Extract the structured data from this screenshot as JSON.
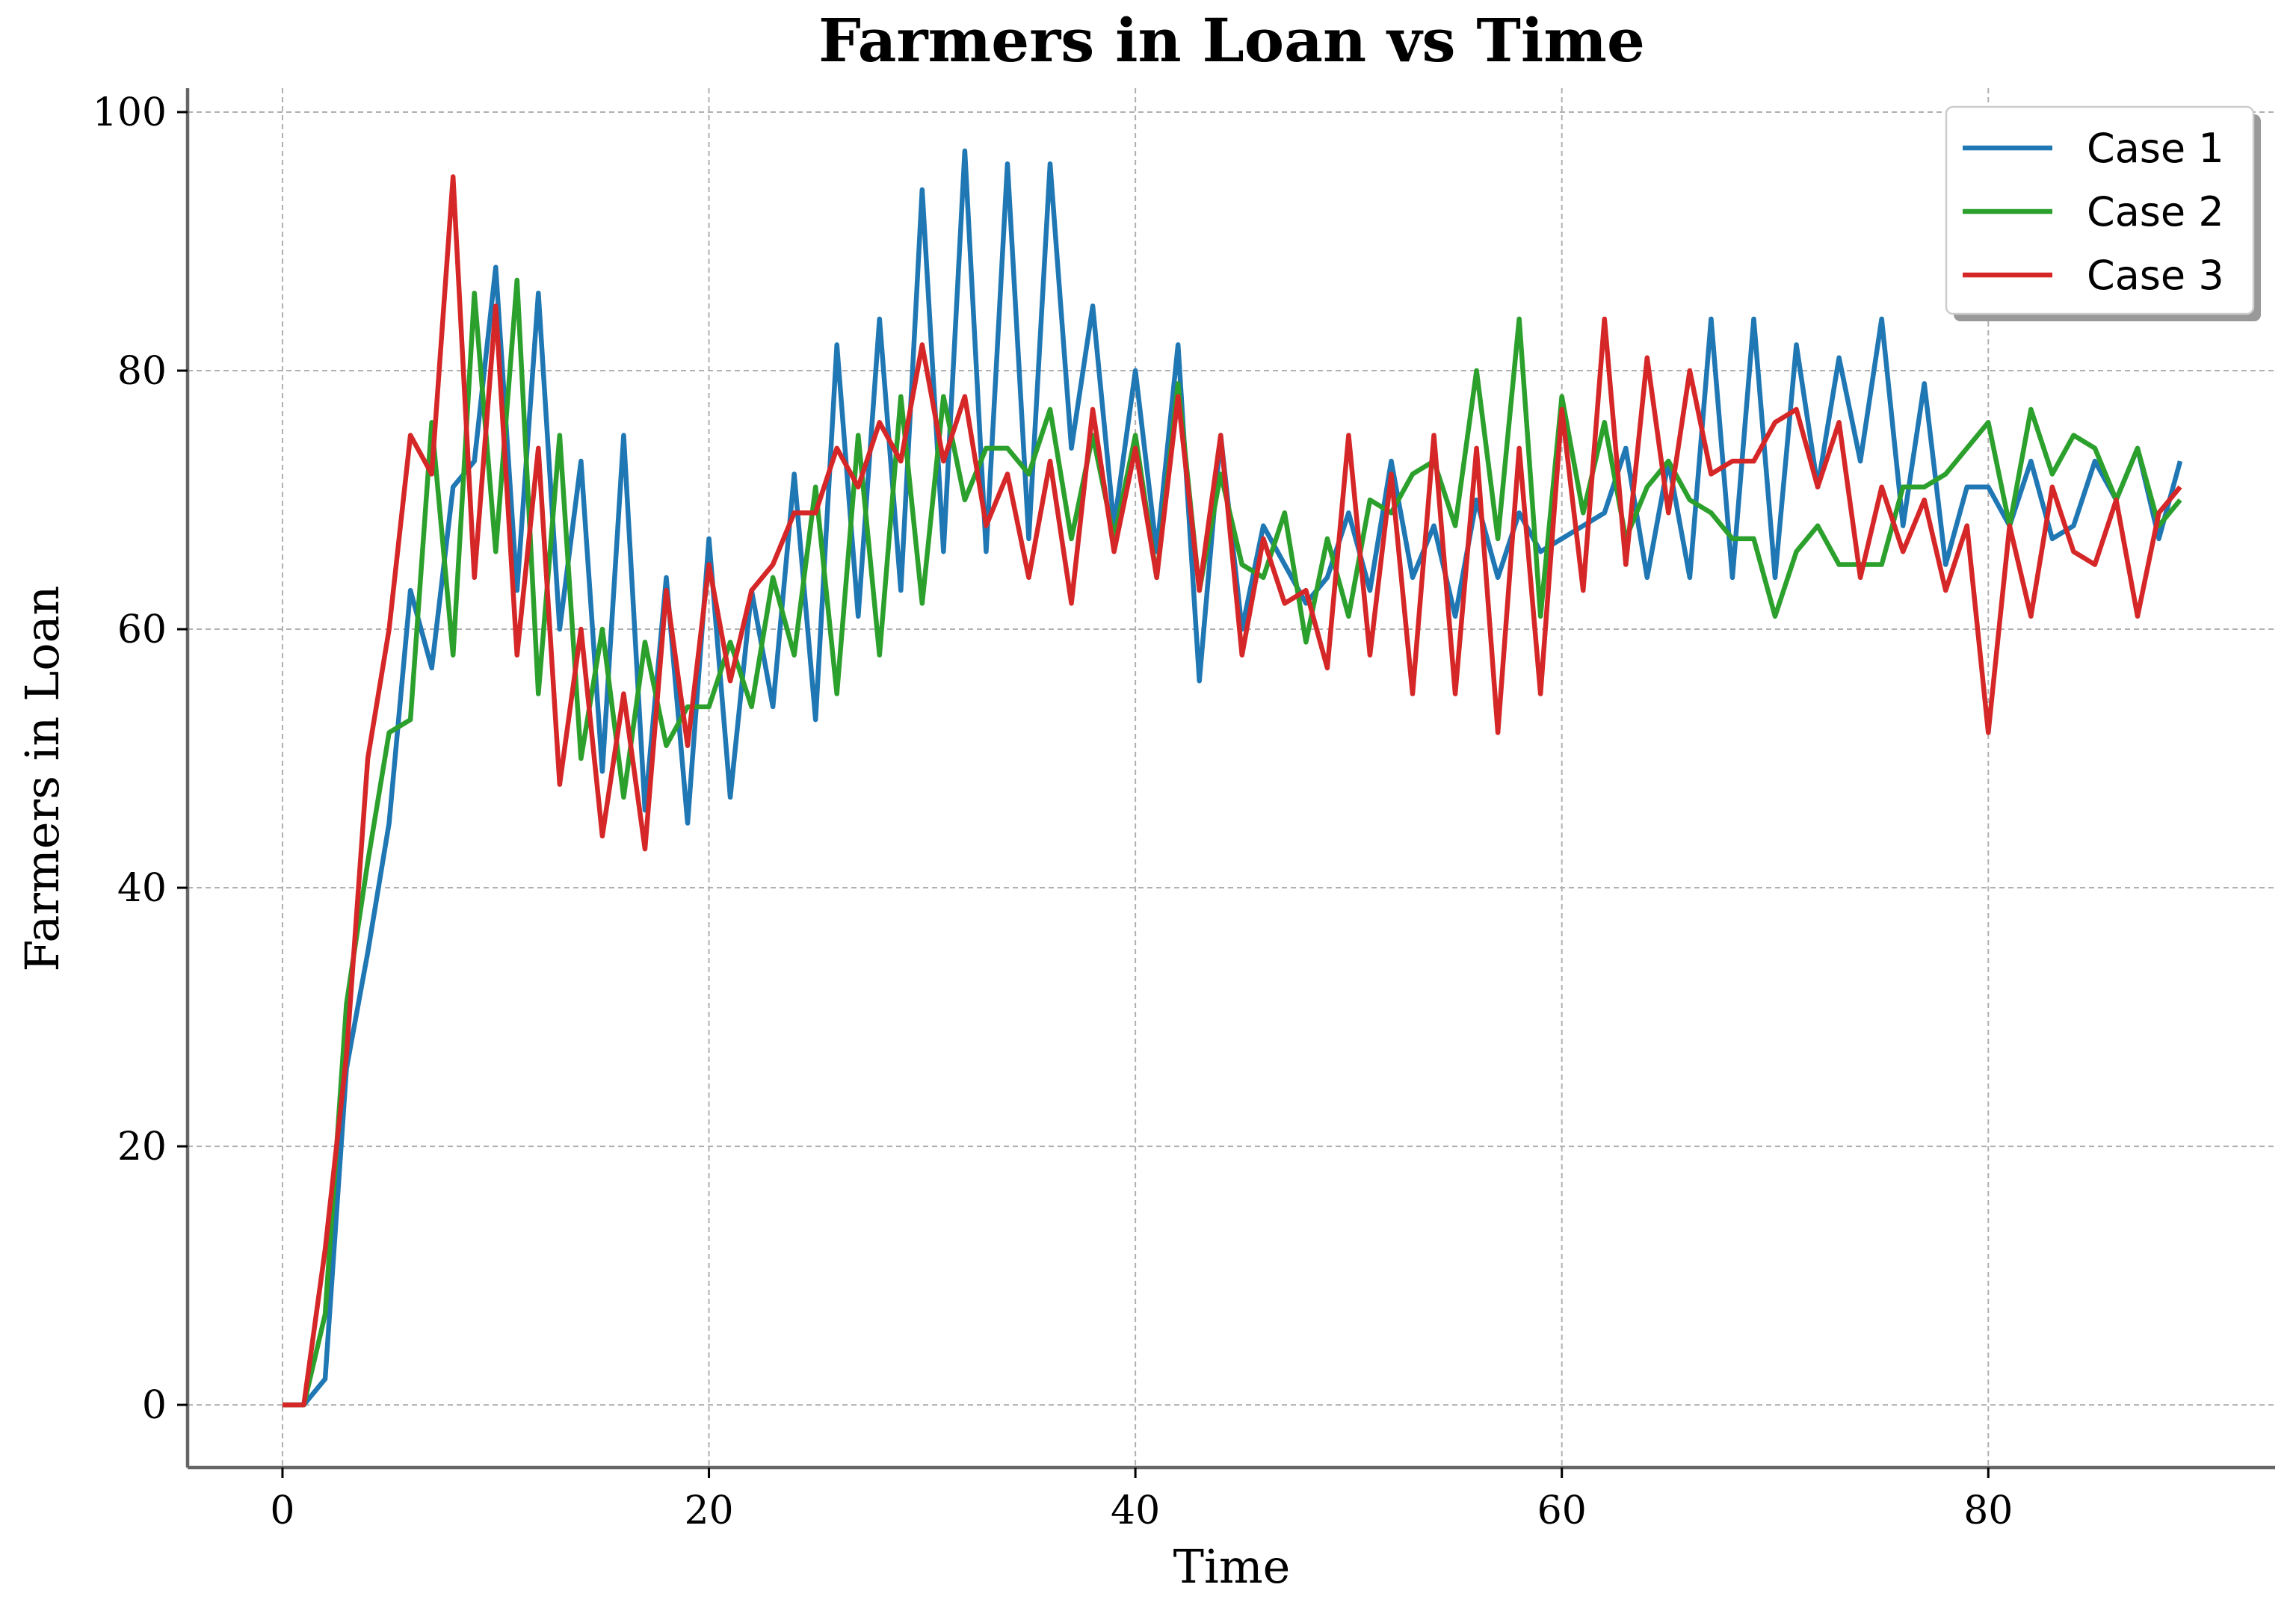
{
  "chart_data": {
    "type": "line",
    "title": "Farmers in Loan vs Time",
    "xlabel": "Time",
    "ylabel": "Farmers in Loan",
    "xlim": [
      -4.45,
      93.45
    ],
    "ylim": [
      -4.85,
      101.85
    ],
    "xticks": [
      0,
      20,
      40,
      60,
      80
    ],
    "yticks": [
      0,
      20,
      40,
      60,
      80,
      100
    ],
    "grid": true,
    "legend_position": "top-right",
    "series": [
      {
        "name": "Case 1",
        "color": "#1f77b4",
        "values": [
          0,
          0,
          2,
          26,
          35,
          45,
          63,
          57,
          71,
          73,
          88,
          63,
          86,
          60,
          73,
          49,
          75,
          46,
          64,
          45,
          67,
          47,
          63,
          54,
          72,
          53,
          82,
          61,
          84,
          63,
          94,
          66,
          97,
          66,
          96,
          67,
          96,
          74,
          85,
          68,
          80,
          66,
          82,
          56,
          75,
          60,
          68,
          65,
          62,
          64,
          69,
          63,
          73,
          64,
          68,
          61,
          70,
          64,
          69,
          66,
          67,
          68,
          69,
          74,
          64,
          73,
          64,
          84,
          64,
          84,
          64,
          82,
          71,
          81,
          73,
          84,
          68,
          79,
          65,
          71,
          71,
          68,
          73,
          67,
          68,
          73,
          70,
          74,
          67,
          73
        ]
      },
      {
        "name": "Case 2",
        "color": "#2ca02c",
        "values": [
          0,
          0,
          7,
          31,
          42,
          52,
          53,
          76,
          58,
          86,
          66,
          87,
          55,
          75,
          50,
          60,
          47,
          59,
          51,
          54,
          54,
          59,
          54,
          64,
          58,
          71,
          55,
          75,
          58,
          78,
          62,
          78,
          70,
          74,
          74,
          72,
          77,
          67,
          75,
          67,
          75,
          64,
          79,
          63,
          72,
          65,
          64,
          69,
          59,
          67,
          61,
          70,
          69,
          72,
          73,
          68,
          80,
          67,
          84,
          61,
          78,
          69,
          76,
          67,
          71,
          73,
          70,
          69,
          67,
          67,
          61,
          66,
          68,
          65,
          65,
          65,
          71,
          71,
          72,
          74,
          76,
          68,
          77,
          72,
          75,
          74,
          70,
          74,
          68,
          70
        ]
      },
      {
        "name": "Case 3",
        "color": "#d62728",
        "values": [
          0,
          0,
          12,
          27,
          50,
          60,
          75,
          72,
          95,
          64,
          85,
          58,
          74,
          48,
          60,
          44,
          55,
          43,
          63,
          51,
          65,
          56,
          63,
          65,
          69,
          69,
          74,
          71,
          76,
          73,
          82,
          73,
          78,
          68,
          72,
          64,
          73,
          62,
          77,
          66,
          74,
          64,
          78,
          63,
          75,
          58,
          67,
          62,
          63,
          57,
          75,
          58,
          72,
          55,
          75,
          55,
          74,
          52,
          74,
          55,
          77,
          63,
          84,
          65,
          81,
          69,
          80,
          72,
          73,
          73,
          76,
          77,
          71,
          76,
          64,
          71,
          66,
          70,
          63,
          68,
          52,
          68,
          61,
          71,
          66,
          65,
          70,
          61,
          69,
          71
        ]
      }
    ]
  },
  "colors": {
    "grid": "#b0b0b0",
    "spine": "#666666",
    "legend_border": "#cccccc",
    "legend_shadow": "#999999"
  }
}
